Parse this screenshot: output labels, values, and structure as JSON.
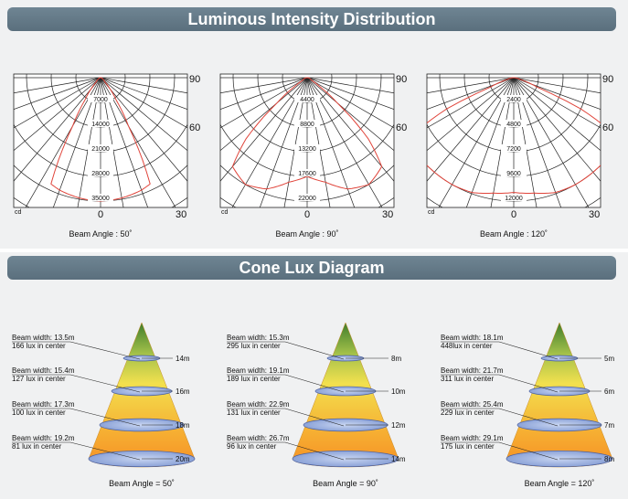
{
  "section1": {
    "title": "Luminous Intensity Distribution"
  },
  "section2": {
    "title": "Cone Lux Diagram"
  },
  "colors": {
    "banner": "#617685",
    "curve": "#e0443a",
    "grid": "#222222"
  },
  "polar": {
    "angle_labels": {
      "a90": "90",
      "a60": "60",
      "a30": "30",
      "a0": "0",
      "unit": "cd"
    },
    "charts": [
      {
        "beam_label": "Beam Angle : 50˚",
        "rings": [
          "7000",
          "14000",
          "21000",
          "28000",
          "35000"
        ]
      },
      {
        "beam_label": "Beam Angle : 90˚",
        "rings": [
          "4400",
          "8800",
          "13200",
          "17600",
          "22000"
        ]
      },
      {
        "beam_label": "Beam Angle : 120˚",
        "rings": [
          "2400",
          "4800",
          "7200",
          "9600",
          "12000"
        ]
      }
    ]
  },
  "cones": [
    {
      "beam_label": "Beam Angle = 50˚",
      "levels": [
        {
          "width": "Beam width: 13.5m",
          "lux": "166 lux in center",
          "distance": "14m"
        },
        {
          "width": "Beam width: 15.4m",
          "lux": "127 lux in center",
          "distance": "16m"
        },
        {
          "width": "Beam width: 17.3m",
          "lux": "100 lux in center",
          "distance": "18m"
        },
        {
          "width": "Beam width: 19.2m",
          "lux": "81 lux in center",
          "distance": "20m"
        }
      ]
    },
    {
      "beam_label": "Beam Angle = 90˚",
      "levels": [
        {
          "width": "Beam width: 15.3m",
          "lux": "295 lux in center",
          "distance": "8m"
        },
        {
          "width": "Beam width: 19.1m",
          "lux": "189 lux in center",
          "distance": "10m"
        },
        {
          "width": "Beam width: 22.9m",
          "lux": "131 lux in center",
          "distance": "12m"
        },
        {
          "width": "Beam width: 26.7m",
          "lux": "96 lux in center",
          "distance": "14m"
        }
      ]
    },
    {
      "beam_label": "Beam Angle = 120˚",
      "levels": [
        {
          "width": "Beam width: 18.1m",
          "lux": "448lux in center",
          "distance": "5m"
        },
        {
          "width": "Beam width: 21.7m",
          "lux": "311 lux in center",
          "distance": "6m"
        },
        {
          "width": "Beam width: 25.4m",
          "lux": "229 lux in center",
          "distance": "7m"
        },
        {
          "width": "Beam width: 29.1m",
          "lux": "175 lux in center",
          "distance": "8m"
        }
      ]
    }
  ]
}
